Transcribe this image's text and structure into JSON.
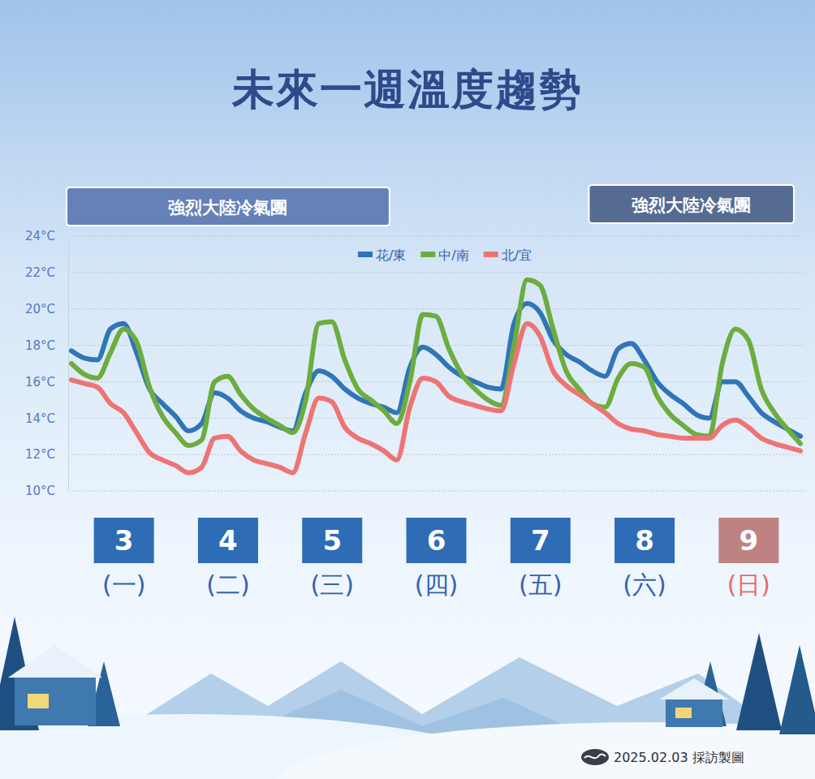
{
  "chart_data": {
    "type": "line",
    "title": "未來一週溫度趨勢",
    "annotations": [
      "強烈大陸冷氣團",
      "強烈大陸冷氣團"
    ],
    "source": "2025.02.03 採訪製圖",
    "categories": [
      null,
      null,
      null,
      null,
      "3",
      null,
      null,
      null,
      null,
      null,
      null,
      null,
      "4",
      null,
      null,
      null,
      null,
      null,
      null,
      null,
      "5",
      null,
      null,
      null,
      null,
      null,
      null,
      null,
      "6",
      null,
      null,
      null,
      null,
      null,
      null,
      null,
      "7",
      null,
      null,
      null,
      null,
      null,
      null,
      null,
      "8",
      null,
      null,
      null,
      null,
      null,
      null,
      null,
      "9",
      null,
      null,
      null,
      null
    ],
    "weekdays": [
      null,
      null,
      null,
      null,
      "(一)",
      null,
      null,
      null,
      null,
      null,
      null,
      null,
      "(二)",
      null,
      null,
      null,
      null,
      null,
      null,
      null,
      "(三)",
      null,
      null,
      null,
      null,
      null,
      null,
      null,
      "(四)",
      null,
      null,
      null,
      null,
      null,
      null,
      null,
      "(五)",
      null,
      null,
      null,
      null,
      null,
      null,
      null,
      "(六)",
      null,
      null,
      null,
      null,
      null,
      null,
      null,
      "(日)",
      null,
      null,
      null,
      null
    ],
    "series": [
      {
        "name": "花/東",
        "color": "#2f75b8",
        "values": [
          17.7,
          17.3,
          17.2,
          18.9,
          19.2,
          17.6,
          15.6,
          14.8,
          14.1,
          13.3,
          13.7,
          15.4,
          15.1,
          14.4,
          14.0,
          13.8,
          13.5,
          13.3,
          15.4,
          16.6,
          16.3,
          15.6,
          15.1,
          14.8,
          14.6,
          14.3,
          16.8,
          17.9,
          17.5,
          16.8,
          16.3,
          16.0,
          15.7,
          15.6,
          19.2,
          20.3,
          19.8,
          18.3,
          17.5,
          17.1,
          16.6,
          16.3,
          17.8,
          18.1,
          17.2,
          16.0,
          15.3,
          14.8,
          14.2,
          14.0,
          16.0,
          16.0,
          15.2,
          14.3,
          13.8,
          13.4,
          13.0
        ]
      },
      {
        "name": "中/南",
        "color": "#6cad3e",
        "values": [
          17.0,
          16.4,
          16.2,
          17.6,
          18.9,
          18.2,
          15.7,
          14.1,
          13.2,
          12.5,
          12.8,
          16.0,
          16.3,
          15.3,
          14.5,
          14.0,
          13.6,
          13.2,
          15.0,
          19.2,
          19.3,
          17.2,
          15.6,
          15.0,
          14.4,
          13.7,
          16.0,
          19.7,
          19.6,
          17.8,
          16.4,
          15.6,
          15.0,
          14.7,
          18.0,
          21.6,
          21.3,
          18.9,
          16.6,
          15.6,
          14.8,
          14.6,
          16.2,
          17.0,
          16.8,
          15.2,
          14.2,
          13.6,
          13.1,
          13.0,
          17.0,
          18.9,
          18.3,
          15.6,
          14.3,
          13.4,
          12.6
        ]
      },
      {
        "name": "北/宜",
        "color": "#ee7474",
        "values": [
          16.1,
          15.9,
          15.7,
          14.8,
          14.3,
          13.2,
          12.1,
          11.7,
          11.4,
          11.0,
          11.3,
          12.9,
          13.0,
          12.2,
          11.7,
          11.5,
          11.3,
          11.0,
          13.2,
          15.1,
          14.9,
          13.5,
          12.9,
          12.6,
          12.2,
          11.7,
          14.6,
          16.2,
          16.0,
          15.2,
          14.9,
          14.7,
          14.5,
          14.4,
          17.0,
          19.2,
          18.5,
          16.6,
          15.8,
          15.3,
          14.8,
          14.3,
          13.7,
          13.4,
          13.3,
          13.1,
          13.0,
          12.9,
          12.9,
          12.9,
          13.6,
          13.9,
          13.5,
          12.9,
          12.6,
          12.4,
          12.2
        ]
      }
    ],
    "ylim": [
      10,
      24
    ],
    "yticks": [
      {
        "value": 10,
        "label": "10°C"
      },
      {
        "value": 12,
        "label": "12°C"
      },
      {
        "value": 14,
        "label": "14°C"
      },
      {
        "value": 16,
        "label": "16°C"
      },
      {
        "value": 18,
        "label": "18°C"
      },
      {
        "value": 20,
        "label": "20°C"
      },
      {
        "value": 22,
        "label": "22°C"
      },
      {
        "value": 24,
        "label": "24°C"
      }
    ],
    "grid": true,
    "legend": "top"
  }
}
